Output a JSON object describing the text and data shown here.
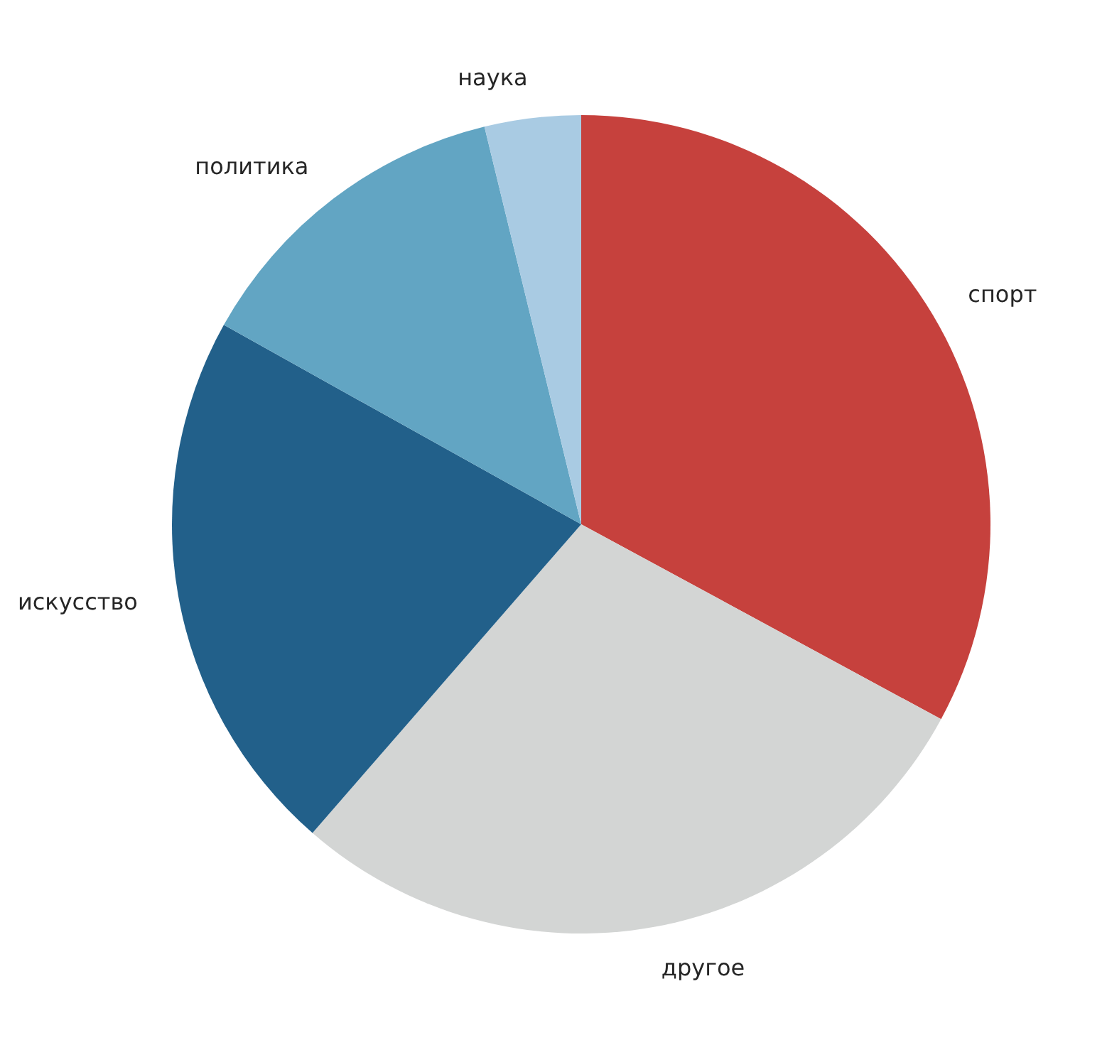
{
  "chart_data": {
    "type": "pie",
    "categories": [
      "спорт",
      "другое",
      "искусство",
      "политика",
      "наука"
    ],
    "values": [
      32.9,
      28.5,
      21.7,
      13.1,
      3.8
    ],
    "colors": [
      "#c6413d",
      "#d3d5d4",
      "#22608a",
      "#62a5c3",
      "#a9cbe3"
    ]
  }
}
